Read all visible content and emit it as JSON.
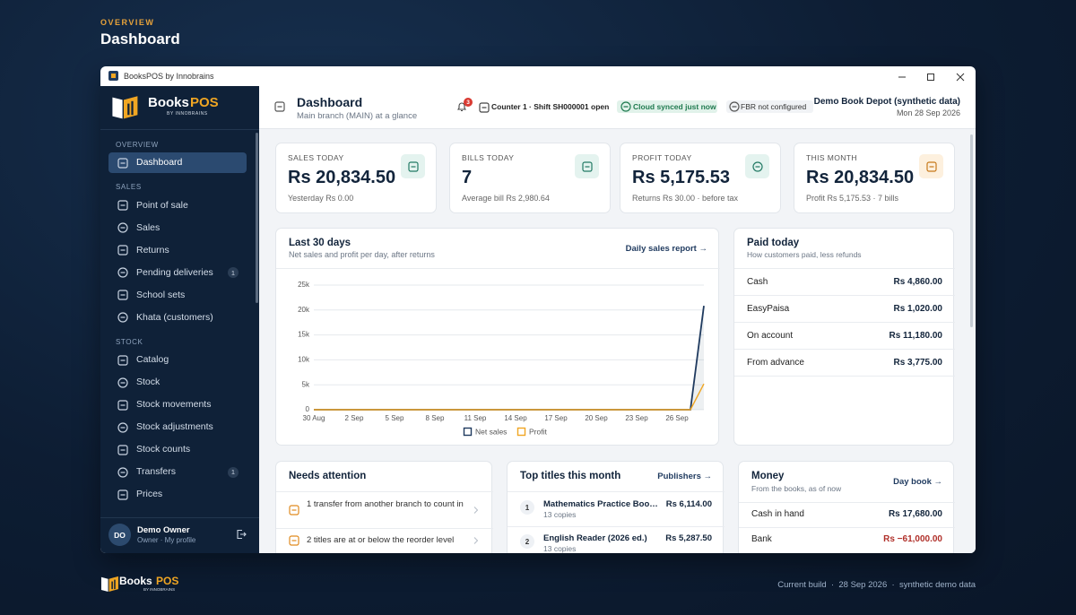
{
  "page": {
    "eyebrow": "OVERVIEW",
    "title": "Dashboard"
  },
  "window": {
    "title": "BooksPOS by Innobrains"
  },
  "sidebar": {
    "brand": "Books",
    "brand_accent": "POS",
    "brand_sub": "BY INNOBRAINS",
    "sections": [
      {
        "label": "OVERVIEW",
        "items": [
          {
            "label": "Dashboard",
            "active": true
          }
        ]
      },
      {
        "label": "SALES",
        "items": [
          {
            "label": "Point of sale"
          },
          {
            "label": "Sales"
          },
          {
            "label": "Returns"
          },
          {
            "label": "Pending deliveries",
            "badge": 1
          },
          {
            "label": "School sets"
          },
          {
            "label": "Khata (customers)"
          }
        ]
      },
      {
        "label": "STOCK",
        "items": [
          {
            "label": "Catalog"
          },
          {
            "label": "Stock"
          },
          {
            "label": "Stock movements"
          },
          {
            "label": "Stock adjustments"
          },
          {
            "label": "Stock counts"
          },
          {
            "label": "Transfers",
            "badge": 1
          },
          {
            "label": "Prices"
          }
        ]
      }
    ],
    "user": {
      "initials": "DO",
      "name": "Demo Owner",
      "role": "Owner · My profile"
    }
  },
  "header": {
    "title": "Dashboard",
    "subtitle": "Main branch (MAIN) at a glance",
    "notifications": 3,
    "counter": "Counter 1 · Shift SH000001 open",
    "sync": "Cloud synced just now",
    "fbr": "FBR not configured",
    "store": "Demo Book Depot (synthetic data)",
    "date": "Mon 28 Sep 2026"
  },
  "stats": [
    {
      "label": "SALES TODAY",
      "value": "Rs 20,834.50",
      "note": "Yesterday Rs 0.00"
    },
    {
      "label": "BILLS TODAY",
      "value": "7",
      "note": "Average bill Rs 2,980.64"
    },
    {
      "label": "PROFIT TODAY",
      "value": "Rs 5,175.53",
      "note": "Returns Rs 30.00 · before tax"
    },
    {
      "label": "THIS MONTH",
      "value": "Rs 20,834.50",
      "note": "Profit Rs 5,175.53 · 7 bills"
    }
  ],
  "chart_data": {
    "type": "line",
    "title": "Last 30 days",
    "subtitle": "Net sales and profit per day, after returns",
    "categories": [
      "30 Aug",
      null,
      null,
      "2 Sep",
      null,
      null,
      "5 Sep",
      null,
      null,
      "8 Sep",
      null,
      null,
      "11 Sep",
      null,
      null,
      "14 Sep",
      null,
      null,
      "17 Sep",
      null,
      null,
      "20 Sep",
      null,
      null,
      "23 Sep",
      null,
      null,
      "26 Sep",
      null,
      null
    ],
    "series": [
      {
        "name": "Net sales",
        "color": "#1f3a5f",
        "values": [
          0,
          0,
          0,
          0,
          0,
          0,
          0,
          0,
          0,
          0,
          0,
          0,
          0,
          0,
          0,
          0,
          0,
          0,
          0,
          0,
          0,
          0,
          0,
          0,
          0,
          0,
          0,
          0,
          0,
          20834.5
        ]
      },
      {
        "name": "Profit",
        "color": "#f0a623",
        "values": [
          0,
          0,
          0,
          0,
          0,
          0,
          0,
          0,
          0,
          0,
          0,
          0,
          0,
          0,
          0,
          0,
          0,
          0,
          0,
          0,
          0,
          0,
          0,
          0,
          0,
          0,
          0,
          0,
          0,
          5175.53
        ]
      }
    ],
    "ylim": [
      0,
      25000
    ],
    "yticks": [
      0,
      {
        "value": 5000,
        "label": "5k"
      },
      {
        "value": 10000,
        "label": "10k"
      },
      {
        "value": 15000,
        "label": "15k"
      },
      {
        "value": 20000,
        "label": "20k"
      },
      {
        "value": 25000,
        "label": "25k"
      }
    ],
    "grid": true,
    "legend": "bottom"
  },
  "chart_link": "Daily sales report →",
  "paid_today": {
    "title": "Paid today",
    "subtitle": "How customers paid, less refunds",
    "rows": [
      [
        "Cash",
        "Rs 4,860.00"
      ],
      [
        "EasyPaisa",
        "Rs 1,020.00"
      ],
      [
        "On account",
        "Rs 11,180.00"
      ],
      [
        "From advance",
        "Rs 3,775.00"
      ]
    ]
  },
  "attention": {
    "title": "Needs attention",
    "items": [
      "1 transfer from another branch to count in",
      "2 titles are at or below the reorder level"
    ]
  },
  "top_titles": {
    "title": "Top titles this month",
    "link": "Publishers →",
    "rows": [
      {
        "rank": 1,
        "title": "Mathematics Practice Boo…",
        "amount": "Rs 6,114.00",
        "copies": "13 copies"
      },
      {
        "rank": 2,
        "title": "English Reader (2026 ed.)",
        "amount": "Rs 5,287.50",
        "copies": "13 copies"
      }
    ]
  },
  "money": {
    "title": "Money",
    "subtitle": "From the books, as of now",
    "link": "Day book →",
    "rows": [
      [
        "Cash in hand",
        "Rs 17,680.00"
      ],
      [
        "Bank",
        "Rs −61,000.00"
      ]
    ]
  },
  "footer": {
    "brand": "Books",
    "brand_accent": "POS",
    "brand_sub": "BY INNOBRAINS",
    "build": "Current build  ·  28 Sep 2026  ·  synthetic demo data"
  }
}
